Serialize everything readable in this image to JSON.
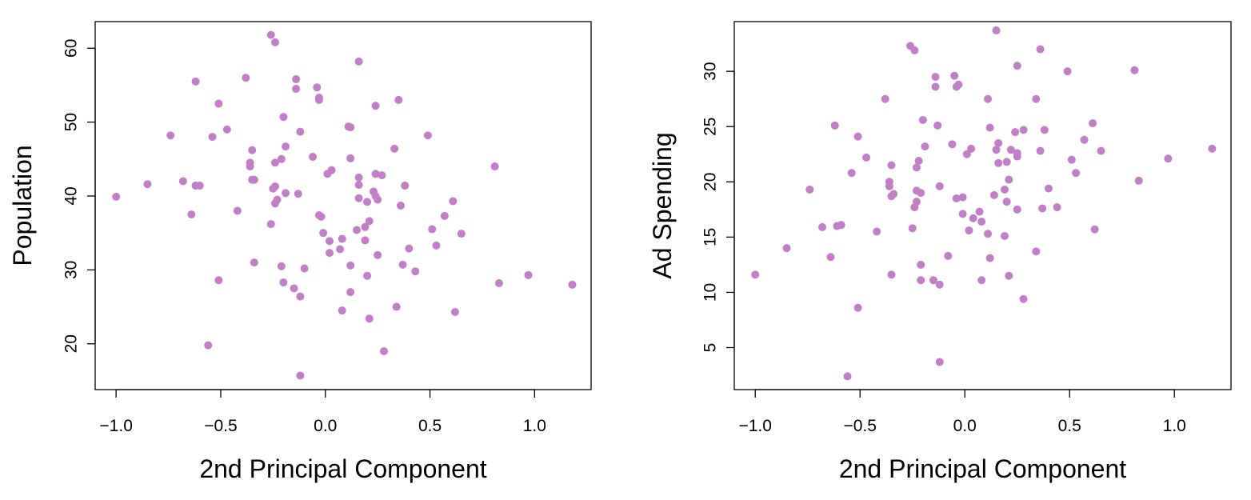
{
  "chart_data": [
    {
      "type": "scatter",
      "xlabel": "2nd Principal Component",
      "ylabel": "Population",
      "xlim": [
        -1.1,
        1.27
      ],
      "ylim": [
        13.8,
        63.6
      ],
      "xticks": [
        -1.0,
        -0.5,
        0.0,
        0.5,
        1.0
      ],
      "xtick_labels": [
        "−1.0",
        "−0.5",
        "0.0",
        "0.5",
        "1.0"
      ],
      "yticks": [
        20,
        30,
        40,
        50,
        60
      ],
      "ytick_labels": [
        "20",
        "30",
        "40",
        "50",
        "60"
      ],
      "color": "#c07fc6",
      "points": [
        [
          -0.26,
          61.8
        ],
        [
          -0.24,
          60.8
        ],
        [
          0.16,
          58.2
        ],
        [
          -0.62,
          55.5
        ],
        [
          -0.38,
          56.0
        ],
        [
          -0.14,
          55.8
        ],
        [
          -0.14,
          54.5
        ],
        [
          -0.04,
          54.7
        ],
        [
          -0.03,
          53.3
        ],
        [
          -0.03,
          53.0
        ],
        [
          -0.51,
          52.5
        ],
        [
          0.24,
          52.2
        ],
        [
          0.35,
          53.0
        ],
        [
          -0.2,
          50.7
        ],
        [
          -0.47,
          49.0
        ],
        [
          0.11,
          49.4
        ],
        [
          0.12,
          49.3
        ],
        [
          -0.12,
          48.7
        ],
        [
          -0.74,
          48.2
        ],
        [
          -0.54,
          48.0
        ],
        [
          0.49,
          48.2
        ],
        [
          -0.19,
          46.7
        ],
        [
          -0.35,
          46.2
        ],
        [
          0.33,
          46.4
        ],
        [
          -0.06,
          45.3
        ],
        [
          0.12,
          45.1
        ],
        [
          -0.21,
          45.0
        ],
        [
          -0.36,
          44.0
        ],
        [
          -0.36,
          44.5
        ],
        [
          -0.24,
          44.5
        ],
        [
          0.81,
          44.0
        ],
        [
          0.03,
          43.5
        ],
        [
          0.01,
          43.0
        ],
        [
          0.24,
          43.0
        ],
        [
          0.27,
          42.8
        ],
        [
          0.16,
          42.5
        ],
        [
          -0.35,
          42.2
        ],
        [
          -0.34,
          42.2
        ],
        [
          -0.68,
          42.0
        ],
        [
          -0.85,
          41.6
        ],
        [
          -0.24,
          41.3
        ],
        [
          -0.25,
          41.0
        ],
        [
          -0.62,
          41.4
        ],
        [
          -0.6,
          41.4
        ],
        [
          0.16,
          41.5
        ],
        [
          0.38,
          41.4
        ],
        [
          0.23,
          40.6
        ],
        [
          -0.19,
          40.4
        ],
        [
          -0.13,
          40.3
        ],
        [
          -1.0,
          39.9
        ],
        [
          0.24,
          40.0
        ],
        [
          0.25,
          39.5
        ],
        [
          -0.23,
          39.5
        ],
        [
          0.16,
          39.7
        ],
        [
          0.2,
          39.2
        ],
        [
          0.61,
          39.3
        ],
        [
          -0.24,
          39.0
        ],
        [
          0.36,
          38.7
        ],
        [
          -0.42,
          38.0
        ],
        [
          -0.64,
          37.5
        ],
        [
          -0.03,
          37.4
        ],
        [
          -0.02,
          37.2
        ],
        [
          0.57,
          37.3
        ],
        [
          0.21,
          36.6
        ],
        [
          -0.26,
          36.2
        ],
        [
          0.19,
          35.8
        ],
        [
          0.15,
          35.4
        ],
        [
          0.51,
          35.5
        ],
        [
          0.65,
          34.9
        ],
        [
          -0.01,
          35.0
        ],
        [
          0.08,
          34.2
        ],
        [
          0.02,
          33.9
        ],
        [
          0.19,
          34.0
        ],
        [
          0.4,
          32.9
        ],
        [
          0.53,
          33.3
        ],
        [
          0.07,
          32.8
        ],
        [
          0.02,
          32.3
        ],
        [
          0.25,
          32.0
        ],
        [
          -0.34,
          31.0
        ],
        [
          0.12,
          30.6
        ],
        [
          0.37,
          30.7
        ],
        [
          -0.21,
          30.5
        ],
        [
          -0.1,
          30.2
        ],
        [
          0.43,
          29.8
        ],
        [
          0.2,
          29.2
        ],
        [
          0.97,
          29.3
        ],
        [
          -0.51,
          28.6
        ],
        [
          -0.2,
          28.3
        ],
        [
          0.83,
          28.2
        ],
        [
          1.18,
          28.0
        ],
        [
          -0.15,
          27.5
        ],
        [
          0.12,
          27.0
        ],
        [
          -0.12,
          26.4
        ],
        [
          0.34,
          25.0
        ],
        [
          0.08,
          24.5
        ],
        [
          0.62,
          24.3
        ],
        [
          0.21,
          23.4
        ],
        [
          -0.56,
          19.8
        ],
        [
          0.28,
          19.0
        ],
        [
          -0.12,
          15.7
        ]
      ]
    },
    {
      "type": "scatter",
      "xlabel": "2nd Principal Component",
      "ylabel": "Ad Spending",
      "xlim": [
        -1.1,
        1.27
      ],
      "ylim": [
        1.2,
        34.5
      ],
      "xticks": [
        -1.0,
        -0.5,
        0.0,
        0.5,
        1.0
      ],
      "xtick_labels": [
        "−1.0",
        "−0.5",
        "0.0",
        "0.5",
        "1.0"
      ],
      "yticks": [
        5,
        10,
        15,
        20,
        25,
        30
      ],
      "ytick_labels": [
        "5",
        "10",
        "15",
        "20",
        "25",
        "30"
      ],
      "color": "#c07fc6",
      "points": [
        [
          0.15,
          33.7
        ],
        [
          -0.26,
          32.3
        ],
        [
          -0.24,
          31.9
        ],
        [
          0.36,
          32.0
        ],
        [
          0.25,
          30.5
        ],
        [
          0.49,
          30.0
        ],
        [
          0.81,
          30.1
        ],
        [
          -0.14,
          29.5
        ],
        [
          -0.05,
          29.6
        ],
        [
          -0.14,
          28.6
        ],
        [
          -0.03,
          28.8
        ],
        [
          -0.04,
          28.6
        ],
        [
          -0.38,
          27.5
        ],
        [
          0.11,
          27.5
        ],
        [
          0.34,
          27.5
        ],
        [
          -0.2,
          25.6
        ],
        [
          -0.13,
          25.1
        ],
        [
          -0.62,
          25.1
        ],
        [
          0.12,
          24.9
        ],
        [
          0.61,
          25.3
        ],
        [
          0.24,
          24.5
        ],
        [
          0.28,
          24.7
        ],
        [
          0.38,
          24.7
        ],
        [
          -0.51,
          24.1
        ],
        [
          0.57,
          23.8
        ],
        [
          -0.06,
          23.4
        ],
        [
          0.16,
          23.5
        ],
        [
          -0.19,
          23.2
        ],
        [
          0.03,
          23.0
        ],
        [
          0.22,
          22.9
        ],
        [
          0.15,
          22.9
        ],
        [
          0.36,
          22.8
        ],
        [
          0.65,
          22.8
        ],
        [
          1.18,
          23.0
        ],
        [
          0.25,
          22.6
        ],
        [
          0.25,
          22.3
        ],
        [
          0.01,
          22.5
        ],
        [
          -0.47,
          22.2
        ],
        [
          0.51,
          22.0
        ],
        [
          0.97,
          22.1
        ],
        [
          0.16,
          21.7
        ],
        [
          0.2,
          21.8
        ],
        [
          -0.22,
          21.9
        ],
        [
          -0.35,
          21.5
        ],
        [
          -0.23,
          21.3
        ],
        [
          0.53,
          20.8
        ],
        [
          -0.54,
          20.8
        ],
        [
          0.21,
          20.2
        ],
        [
          0.83,
          20.1
        ],
        [
          -0.36,
          20.0
        ],
        [
          -0.36,
          19.6
        ],
        [
          0.19,
          19.3
        ],
        [
          -0.74,
          19.3
        ],
        [
          0.4,
          19.4
        ],
        [
          -0.12,
          19.6
        ],
        [
          -0.23,
          19.2
        ],
        [
          -0.21,
          19.0
        ],
        [
          -0.34,
          18.9
        ],
        [
          -0.35,
          18.7
        ],
        [
          -0.01,
          18.6
        ],
        [
          -0.04,
          18.5
        ],
        [
          0.14,
          18.8
        ],
        [
          -0.23,
          18.2
        ],
        [
          0.2,
          18.2
        ],
        [
          -0.24,
          17.7
        ],
        [
          0.25,
          17.5
        ],
        [
          0.37,
          17.6
        ],
        [
          0.44,
          17.7
        ],
        [
          0.07,
          17.3
        ],
        [
          -0.01,
          17.1
        ],
        [
          0.04,
          16.7
        ],
        [
          0.08,
          16.4
        ],
        [
          -0.59,
          16.1
        ],
        [
          -0.61,
          16.0
        ],
        [
          -0.68,
          15.9
        ],
        [
          -0.25,
          15.8
        ],
        [
          0.02,
          15.6
        ],
        [
          0.62,
          15.7
        ],
        [
          -0.42,
          15.5
        ],
        [
          0.11,
          15.3
        ],
        [
          0.19,
          15.1
        ],
        [
          -0.85,
          14.0
        ],
        [
          0.34,
          13.7
        ],
        [
          -0.08,
          13.3
        ],
        [
          -0.64,
          13.2
        ],
        [
          0.12,
          13.1
        ],
        [
          -0.21,
          12.5
        ],
        [
          -1.0,
          11.6
        ],
        [
          -0.35,
          11.6
        ],
        [
          0.21,
          11.5
        ],
        [
          -0.21,
          11.1
        ],
        [
          -0.15,
          11.1
        ],
        [
          0.08,
          11.1
        ],
        [
          -0.12,
          10.7
        ],
        [
          0.28,
          9.4
        ],
        [
          -0.51,
          8.6
        ],
        [
          -0.12,
          3.7
        ],
        [
          -0.56,
          2.4
        ]
      ]
    }
  ]
}
